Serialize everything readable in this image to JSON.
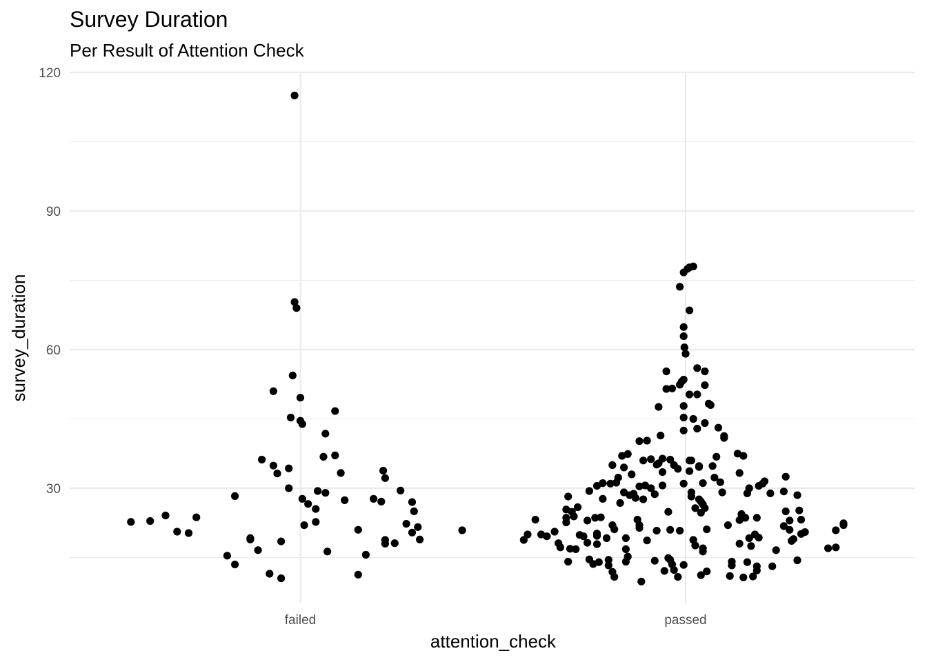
{
  "chart_data": {
    "type": "scatter",
    "title": "Survey Duration",
    "subtitle": "Per Result of Attention Check",
    "xlabel": "attention_check",
    "ylabel": "survey_duration",
    "categories": [
      "failed",
      "passed"
    ],
    "y_ticks": [
      30,
      60,
      90,
      120
    ],
    "ylim": [
      4.5,
      124.5
    ],
    "grid": true,
    "point_color": "#000000",
    "series": [
      {
        "category": "failed",
        "points": [
          {
            "dx": -0.44,
            "y": 22.7
          },
          {
            "dx": -0.39,
            "y": 22.9
          },
          {
            "dx": -0.35,
            "y": 24.1
          },
          {
            "dx": -0.32,
            "y": 20.6
          },
          {
            "dx": -0.29,
            "y": 20.3
          },
          {
            "dx": -0.27,
            "y": 23.7
          },
          {
            "dx": -0.19,
            "y": 15.4
          },
          {
            "dx": -0.17,
            "y": 28.3
          },
          {
            "dx": -0.17,
            "y": 13.5
          },
          {
            "dx": -0.13,
            "y": 19.2
          },
          {
            "dx": -0.13,
            "y": 18.9
          },
          {
            "dx": -0.11,
            "y": 16.6
          },
          {
            "dx": -0.1,
            "y": 36.2
          },
          {
            "dx": -0.08,
            "y": 11.5
          },
          {
            "dx": -0.07,
            "y": 34.9
          },
          {
            "dx": -0.07,
            "y": 51.0
          },
          {
            "dx": -0.06,
            "y": 33.2
          },
          {
            "dx": -0.05,
            "y": 10.5
          },
          {
            "dx": -0.05,
            "y": 18.5
          },
          {
            "dx": -0.03,
            "y": 30.0
          },
          {
            "dx": -0.03,
            "y": 34.3
          },
          {
            "dx": -0.025,
            "y": 45.3
          },
          {
            "dx": -0.02,
            "y": 54.4
          },
          {
            "dx": -0.015,
            "y": 115.0
          },
          {
            "dx": -0.015,
            "y": 70.3
          },
          {
            "dx": -0.01,
            "y": 69.0
          },
          {
            "dx": 0.0,
            "y": 49.6
          },
          {
            "dx": 0.0,
            "y": 44.6
          },
          {
            "dx": 0.005,
            "y": 43.9
          },
          {
            "dx": 0.005,
            "y": 27.7
          },
          {
            "dx": 0.01,
            "y": 22.0
          },
          {
            "dx": 0.02,
            "y": 26.6
          },
          {
            "dx": 0.04,
            "y": 25.5
          },
          {
            "dx": 0.04,
            "y": 22.7
          },
          {
            "dx": 0.045,
            "y": 29.4
          },
          {
            "dx": 0.06,
            "y": 36.8
          },
          {
            "dx": 0.065,
            "y": 41.8
          },
          {
            "dx": 0.065,
            "y": 29.0
          },
          {
            "dx": 0.07,
            "y": 16.3
          },
          {
            "dx": 0.09,
            "y": 37.1
          },
          {
            "dx": 0.09,
            "y": 46.7
          },
          {
            "dx": 0.105,
            "y": 33.3
          },
          {
            "dx": 0.115,
            "y": 27.4
          },
          {
            "dx": 0.15,
            "y": 21.0
          },
          {
            "dx": 0.15,
            "y": 11.3
          },
          {
            "dx": 0.17,
            "y": 15.6
          },
          {
            "dx": 0.19,
            "y": 27.7
          },
          {
            "dx": 0.21,
            "y": 27.1
          },
          {
            "dx": 0.215,
            "y": 33.8
          },
          {
            "dx": 0.22,
            "y": 32.2
          },
          {
            "dx": 0.22,
            "y": 18.8
          },
          {
            "dx": 0.22,
            "y": 18.0
          },
          {
            "dx": 0.245,
            "y": 18.1
          },
          {
            "dx": 0.26,
            "y": 29.5
          },
          {
            "dx": 0.275,
            "y": 22.3
          },
          {
            "dx": 0.29,
            "y": 27.0
          },
          {
            "dx": 0.29,
            "y": 20.4
          },
          {
            "dx": 0.295,
            "y": 25.0
          },
          {
            "dx": 0.305,
            "y": 21.6
          },
          {
            "dx": 0.31,
            "y": 18.9
          },
          {
            "dx": 0.42,
            "y": 20.9
          }
        ]
      },
      {
        "category": "passed",
        "points": [
          {
            "dx": -0.42,
            "y": 18.8
          },
          {
            "dx": -0.41,
            "y": 20.0
          },
          {
            "dx": -0.39,
            "y": 23.2
          },
          {
            "dx": -0.375,
            "y": 20.0
          },
          {
            "dx": -0.36,
            "y": 19.6
          },
          {
            "dx": -0.34,
            "y": 20.6
          },
          {
            "dx": -0.33,
            "y": 18.1
          },
          {
            "dx": -0.325,
            "y": 17.2
          },
          {
            "dx": -0.31,
            "y": 25.4
          },
          {
            "dx": -0.31,
            "y": 23.6
          },
          {
            "dx": -0.31,
            "y": 22.6
          },
          {
            "dx": -0.305,
            "y": 28.2
          },
          {
            "dx": -0.305,
            "y": 14.1
          },
          {
            "dx": -0.3,
            "y": 16.9
          },
          {
            "dx": -0.295,
            "y": 24.9
          },
          {
            "dx": -0.29,
            "y": 23.9
          },
          {
            "dx": -0.285,
            "y": 16.8
          },
          {
            "dx": -0.28,
            "y": 25.9
          },
          {
            "dx": -0.275,
            "y": 19.9
          },
          {
            "dx": -0.265,
            "y": 19.6
          },
          {
            "dx": -0.255,
            "y": 18.2
          },
          {
            "dx": -0.255,
            "y": 23.0
          },
          {
            "dx": -0.25,
            "y": 29.4
          },
          {
            "dx": -0.25,
            "y": 14.6
          },
          {
            "dx": -0.24,
            "y": 13.6
          },
          {
            "dx": -0.235,
            "y": 23.6
          },
          {
            "dx": -0.23,
            "y": 30.5
          },
          {
            "dx": -0.23,
            "y": 20.2
          },
          {
            "dx": -0.23,
            "y": 19.7
          },
          {
            "dx": -0.23,
            "y": 17.9
          },
          {
            "dx": -0.225,
            "y": 14.0
          },
          {
            "dx": -0.22,
            "y": 23.7
          },
          {
            "dx": -0.215,
            "y": 31.1
          },
          {
            "dx": -0.215,
            "y": 27.7
          },
          {
            "dx": -0.205,
            "y": 19.2
          },
          {
            "dx": -0.2,
            "y": 14.5
          },
          {
            "dx": -0.2,
            "y": 13.3
          },
          {
            "dx": -0.195,
            "y": 31.0
          },
          {
            "dx": -0.19,
            "y": 22.0
          },
          {
            "dx": -0.19,
            "y": 11.9
          },
          {
            "dx": -0.19,
            "y": 35.0
          },
          {
            "dx": -0.185,
            "y": 21.1
          },
          {
            "dx": -0.185,
            "y": 10.8
          },
          {
            "dx": -0.18,
            "y": 31.2
          },
          {
            "dx": -0.175,
            "y": 32.3
          },
          {
            "dx": -0.17,
            "y": 26.8
          },
          {
            "dx": -0.165,
            "y": 37.0
          },
          {
            "dx": -0.16,
            "y": 34.5
          },
          {
            "dx": -0.16,
            "y": 29.1
          },
          {
            "dx": -0.155,
            "y": 19.2
          },
          {
            "dx": -0.155,
            "y": 14.1
          },
          {
            "dx": -0.155,
            "y": 16.8
          },
          {
            "dx": -0.15,
            "y": 37.4
          },
          {
            "dx": -0.15,
            "y": 15.2
          },
          {
            "dx": -0.145,
            "y": 28.5
          },
          {
            "dx": -0.14,
            "y": 33.0
          },
          {
            "dx": -0.135,
            "y": 28.8
          },
          {
            "dx": -0.13,
            "y": 27.9
          },
          {
            "dx": -0.125,
            "y": 23.2
          },
          {
            "dx": -0.12,
            "y": 40.2
          },
          {
            "dx": -0.12,
            "y": 22.0
          },
          {
            "dx": -0.12,
            "y": 21.4
          },
          {
            "dx": -0.12,
            "y": 30.4
          },
          {
            "dx": -0.115,
            "y": 9.8
          },
          {
            "dx": -0.11,
            "y": 27.6
          },
          {
            "dx": -0.11,
            "y": 36.0
          },
          {
            "dx": -0.105,
            "y": 30.6
          },
          {
            "dx": -0.1,
            "y": 40.3
          },
          {
            "dx": -0.1,
            "y": 18.7
          },
          {
            "dx": -0.09,
            "y": 36.3
          },
          {
            "dx": -0.09,
            "y": 30.0
          },
          {
            "dx": -0.08,
            "y": 14.3
          },
          {
            "dx": -0.08,
            "y": 28.7
          },
          {
            "dx": -0.075,
            "y": 35.1
          },
          {
            "dx": -0.075,
            "y": 20.8
          },
          {
            "dx": -0.07,
            "y": 47.6
          },
          {
            "dx": -0.07,
            "y": 35.4
          },
          {
            "dx": -0.065,
            "y": 41.4
          },
          {
            "dx": -0.06,
            "y": 33.5
          },
          {
            "dx": -0.06,
            "y": 30.6
          },
          {
            "dx": -0.06,
            "y": 36.4
          },
          {
            "dx": -0.055,
            "y": 12.1
          },
          {
            "dx": -0.05,
            "y": 51.5
          },
          {
            "dx": -0.05,
            "y": 55.3
          },
          {
            "dx": -0.045,
            "y": 24.9
          },
          {
            "dx": -0.045,
            "y": 14.9
          },
          {
            "dx": -0.04,
            "y": 36.2
          },
          {
            "dx": -0.04,
            "y": 14.5
          },
          {
            "dx": -0.04,
            "y": 21.0
          },
          {
            "dx": -0.035,
            "y": 13.5
          },
          {
            "dx": -0.035,
            "y": 51.6
          },
          {
            "dx": -0.03,
            "y": 12.3
          },
          {
            "dx": -0.03,
            "y": 35.0
          },
          {
            "dx": -0.02,
            "y": 10.8
          },
          {
            "dx": -0.02,
            "y": 34.2
          },
          {
            "dx": -0.015,
            "y": 20.8
          },
          {
            "dx": -0.015,
            "y": 52.4
          },
          {
            "dx": -0.015,
            "y": 73.6
          },
          {
            "dx": -0.01,
            "y": 53.1
          },
          {
            "dx": -0.005,
            "y": 31.0
          },
          {
            "dx": -0.005,
            "y": 13.4
          },
          {
            "dx": -0.005,
            "y": 64.9
          },
          {
            "dx": -0.005,
            "y": 62.9
          },
          {
            "dx": -0.005,
            "y": 53.5
          },
          {
            "dx": -0.005,
            "y": 42.5
          },
          {
            "dx": -0.005,
            "y": 45.3
          },
          {
            "dx": -0.005,
            "y": 47.8
          },
          {
            "dx": -0.005,
            "y": 76.7
          },
          {
            "dx": -0.003,
            "y": 60.5
          },
          {
            "dx": 0.0,
            "y": 59.1
          },
          {
            "dx": 0.005,
            "y": 77.5
          },
          {
            "dx": 0.01,
            "y": 77.8
          },
          {
            "dx": 0.01,
            "y": 36.0
          },
          {
            "dx": 0.01,
            "y": 33.7
          },
          {
            "dx": 0.01,
            "y": 50.3
          },
          {
            "dx": 0.01,
            "y": 68.5
          },
          {
            "dx": 0.015,
            "y": 29.1
          },
          {
            "dx": 0.015,
            "y": 28.2
          },
          {
            "dx": 0.015,
            "y": 36.0
          },
          {
            "dx": 0.02,
            "y": 45.0
          },
          {
            "dx": 0.02,
            "y": 18.8
          },
          {
            "dx": 0.02,
            "y": 78.0
          },
          {
            "dx": 0.025,
            "y": 25.7
          },
          {
            "dx": 0.025,
            "y": 17.6
          },
          {
            "dx": 0.03,
            "y": 50.3
          },
          {
            "dx": 0.03,
            "y": 56.0
          },
          {
            "dx": 0.03,
            "y": 42.9
          },
          {
            "dx": 0.035,
            "y": 34.8
          },
          {
            "dx": 0.035,
            "y": 27.6
          },
          {
            "dx": 0.035,
            "y": 34.6
          },
          {
            "dx": 0.04,
            "y": 27.1
          },
          {
            "dx": 0.04,
            "y": 24.7
          },
          {
            "dx": 0.04,
            "y": 11.2
          },
          {
            "dx": 0.045,
            "y": 26.5
          },
          {
            "dx": 0.045,
            "y": 31.1
          },
          {
            "dx": 0.045,
            "y": 17.0
          },
          {
            "dx": 0.045,
            "y": 16.3
          },
          {
            "dx": 0.05,
            "y": 44.1
          },
          {
            "dx": 0.05,
            "y": 25.7
          },
          {
            "dx": 0.05,
            "y": 55.3
          },
          {
            "dx": 0.05,
            "y": 52.3
          },
          {
            "dx": 0.055,
            "y": 21.1
          },
          {
            "dx": 0.055,
            "y": 12.0
          },
          {
            "dx": 0.06,
            "y": 48.3
          },
          {
            "dx": 0.065,
            "y": 48.0
          },
          {
            "dx": 0.07,
            "y": 34.8
          },
          {
            "dx": 0.075,
            "y": 32.3
          },
          {
            "dx": 0.08,
            "y": 36.8
          },
          {
            "dx": 0.085,
            "y": 43.1
          },
          {
            "dx": 0.09,
            "y": 31.3
          },
          {
            "dx": 0.095,
            "y": 29.1
          },
          {
            "dx": 0.1,
            "y": 40.9
          },
          {
            "dx": 0.1,
            "y": 41.3
          },
          {
            "dx": 0.11,
            "y": 22.0
          },
          {
            "dx": 0.12,
            "y": 14.1
          },
          {
            "dx": 0.12,
            "y": 13.3
          },
          {
            "dx": 0.115,
            "y": 11.0
          },
          {
            "dx": 0.135,
            "y": 37.5
          },
          {
            "dx": 0.14,
            "y": 33.3
          },
          {
            "dx": 0.14,
            "y": 23.1
          },
          {
            "dx": 0.14,
            "y": 18.0
          },
          {
            "dx": 0.145,
            "y": 24.4
          },
          {
            "dx": 0.15,
            "y": 37.0
          },
          {
            "dx": 0.15,
            "y": 10.7
          },
          {
            "dx": 0.155,
            "y": 23.6
          },
          {
            "dx": 0.16,
            "y": 28.9
          },
          {
            "dx": 0.16,
            "y": 14.0
          },
          {
            "dx": 0.165,
            "y": 30.0
          },
          {
            "dx": 0.165,
            "y": 19.2
          },
          {
            "dx": 0.17,
            "y": 17.5
          },
          {
            "dx": 0.175,
            "y": 10.9
          },
          {
            "dx": 0.18,
            "y": 20.0
          },
          {
            "dx": 0.185,
            "y": 23.6
          },
          {
            "dx": 0.185,
            "y": 12.2
          },
          {
            "dx": 0.185,
            "y": 13.1
          },
          {
            "dx": 0.19,
            "y": 19.3
          },
          {
            "dx": 0.19,
            "y": 30.5
          },
          {
            "dx": 0.2,
            "y": 31.0
          },
          {
            "dx": 0.205,
            "y": 31.5
          },
          {
            "dx": 0.22,
            "y": 28.9
          },
          {
            "dx": 0.225,
            "y": 13.1
          },
          {
            "dx": 0.235,
            "y": 16.6
          },
          {
            "dx": 0.255,
            "y": 21.8
          },
          {
            "dx": 0.26,
            "y": 25.0
          },
          {
            "dx": 0.255,
            "y": 29.3
          },
          {
            "dx": 0.26,
            "y": 32.5
          },
          {
            "dx": 0.27,
            "y": 21.0
          },
          {
            "dx": 0.27,
            "y": 23.0
          },
          {
            "dx": 0.275,
            "y": 18.6
          },
          {
            "dx": 0.28,
            "y": 19.0
          },
          {
            "dx": 0.29,
            "y": 28.5
          },
          {
            "dx": 0.29,
            "y": 14.4
          },
          {
            "dx": 0.295,
            "y": 25.2
          },
          {
            "dx": 0.3,
            "y": 23.2
          },
          {
            "dx": 0.3,
            "y": 20.1
          },
          {
            "dx": 0.31,
            "y": 20.5
          },
          {
            "dx": 0.37,
            "y": 17.0
          },
          {
            "dx": 0.39,
            "y": 17.2
          },
          {
            "dx": 0.39,
            "y": 20.9
          },
          {
            "dx": 0.41,
            "y": 22.0
          },
          {
            "dx": 0.41,
            "y": 22.4
          }
        ]
      }
    ]
  }
}
